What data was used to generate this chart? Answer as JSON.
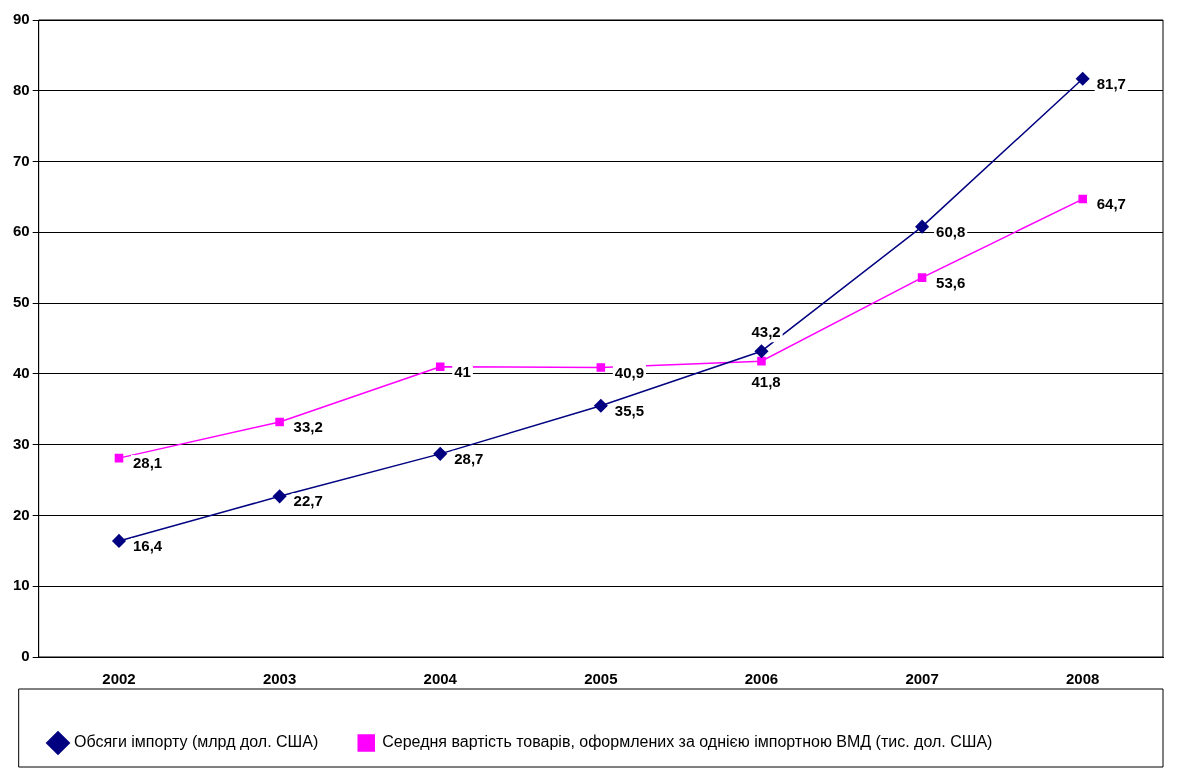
{
  "chart_data": {
    "type": "line",
    "categories": [
      "2002",
      "2003",
      "2004",
      "2005",
      "2006",
      "2007",
      "2008"
    ],
    "series": [
      {
        "name": "Обсяги імпорту (млрд дол. США)",
        "color": "#000080",
        "marker": "diamond",
        "values": [
          16.4,
          22.7,
          28.7,
          35.5,
          43.2,
          60.8,
          81.7
        ],
        "value_labels": [
          "16,4",
          "22,7",
          "28,7",
          "35,5",
          "43,2",
          "60,8",
          "81,7"
        ]
      },
      {
        "name": "Середня вартість товарів, оформлених за однією імпортною ВМД (тис. дол. США)",
        "color": "#ff00ff",
        "marker": "square",
        "values": [
          28.1,
          33.2,
          41,
          40.9,
          41.8,
          53.6,
          64.7
        ],
        "value_labels": [
          "28,1",
          "33,2",
          "41",
          "40,9",
          "41,8",
          "53,6",
          "64,7"
        ]
      }
    ],
    "ylim": [
      0,
      90
    ],
    "yticks": [
      0,
      10,
      20,
      30,
      40,
      50,
      60,
      70,
      80,
      90
    ],
    "grid": "y",
    "legend": "bottom",
    "line_style": "solid"
  }
}
